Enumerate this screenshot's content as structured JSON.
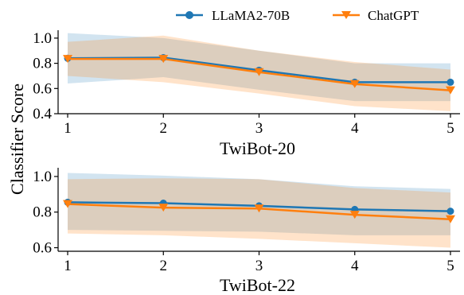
{
  "chart_data": [
    {
      "type": "line",
      "xlabel": "TwiBot-20",
      "ylabel": "Classifier Score",
      "x": [
        1,
        2,
        3,
        4,
        5
      ],
      "xticks": [
        "1",
        "2",
        "3",
        "4",
        "5"
      ],
      "xlim": [
        0.9,
        5.1
      ],
      "ylim": [
        0.4,
        1.05
      ],
      "yticks": [
        "0.4",
        "0.6",
        "0.8",
        "1.0"
      ],
      "yticks_values": [
        0.4,
        0.6,
        0.8,
        1.0
      ],
      "series": [
        {
          "name": "LLaMA2-70B",
          "color": "#1f77b4",
          "marker": "circle",
          "values": [
            0.84,
            0.845,
            0.745,
            0.65,
            0.65
          ],
          "band_low": [
            0.64,
            0.69,
            0.59,
            0.5,
            0.5
          ],
          "band_high": [
            1.04,
            1.0,
            0.9,
            0.8,
            0.8
          ]
        },
        {
          "name": "ChatGPT",
          "color": "#ff7f0e",
          "marker": "triangle-down",
          "values": [
            0.835,
            0.835,
            0.73,
            0.635,
            0.585
          ],
          "band_low": [
            0.7,
            0.65,
            0.56,
            0.46,
            0.42
          ],
          "band_high": [
            0.97,
            1.02,
            0.9,
            0.81,
            0.75
          ]
        }
      ]
    },
    {
      "type": "line",
      "xlabel": "TwiBot-22",
      "ylabel": "Classifier Score",
      "x": [
        1,
        2,
        3,
        4,
        5
      ],
      "xticks": [
        "1",
        "2",
        "3",
        "4",
        "5"
      ],
      "xlim": [
        0.9,
        5.1
      ],
      "ylim": [
        0.58,
        1.04
      ],
      "yticks": [
        "0.6",
        "0.8",
        "1.0"
      ],
      "yticks_values": [
        0.6,
        0.8,
        1.0
      ],
      "series": [
        {
          "name": "LLaMA2-70B",
          "color": "#1f77b4",
          "marker": "circle",
          "values": [
            0.855,
            0.85,
            0.835,
            0.815,
            0.805
          ],
          "band_low": [
            0.7,
            0.695,
            0.69,
            0.67,
            0.67
          ],
          "band_high": [
            1.02,
            1.005,
            0.985,
            0.945,
            0.93
          ]
        },
        {
          "name": "ChatGPT",
          "color": "#ff7f0e",
          "marker": "triangle-down",
          "values": [
            0.845,
            0.825,
            0.82,
            0.785,
            0.76
          ],
          "band_low": [
            0.68,
            0.67,
            0.65,
            0.625,
            0.6
          ],
          "band_high": [
            0.985,
            0.99,
            0.985,
            0.935,
            0.91
          ]
        }
      ]
    }
  ],
  "legend": {
    "position": "top-right",
    "items": [
      {
        "label": "LLaMA2-70B",
        "color": "#1f77b4",
        "marker": "circle"
      },
      {
        "label": "ChatGPT",
        "color": "#ff7f0e",
        "marker": "triangle-down"
      }
    ]
  }
}
